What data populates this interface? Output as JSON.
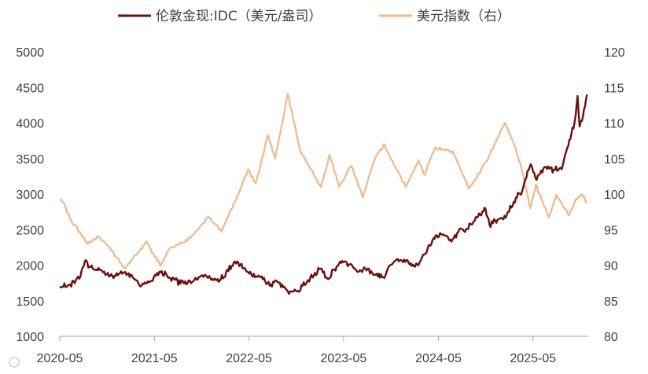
{
  "chart_data": {
    "type": "line",
    "title": "",
    "xlabel": "",
    "ylabel": "",
    "x_tick_labels": [
      "2020-05",
      "2021-05",
      "2022-05",
      "2023-05",
      "2024-05",
      "2025-05"
    ],
    "x_range": [
      "2020-05-01",
      "2025-11-30"
    ],
    "y_left": {
      "ylim": [
        1000,
        5000
      ],
      "ticks": [
        1000,
        1500,
        2000,
        2500,
        3000,
        3500,
        4000,
        4500,
        5000
      ]
    },
    "y_right": {
      "ylim": [
        80,
        120
      ],
      "ticks": [
        80,
        85,
        90,
        95,
        100,
        105,
        110,
        115,
        120
      ]
    },
    "grid": false,
    "legend_position": "top",
    "series": [
      {
        "name": "伦敦金现:IDC（美元/盎司）",
        "axis": "left",
        "color": "#6b0f0f",
        "x": [
          "2020-05-01",
          "2020-06-10",
          "2020-07-15",
          "2020-08-06",
          "2020-09-10",
          "2020-10-15",
          "2020-11-20",
          "2021-01-05",
          "2021-02-15",
          "2021-03-08",
          "2021-04-15",
          "2021-05-25",
          "2021-07-15",
          "2021-08-10",
          "2021-09-15",
          "2021-11-15",
          "2021-12-15",
          "2022-01-25",
          "2022-03-08",
          "2022-04-15",
          "2022-05-15",
          "2022-06-15",
          "2022-07-20",
          "2022-08-15",
          "2022-09-28",
          "2022-11-03",
          "2022-12-15",
          "2023-02-01",
          "2023-02-28",
          "2023-04-13",
          "2023-05-04",
          "2023-06-29",
          "2023-07-20",
          "2023-08-20",
          "2023-10-05",
          "2023-10-27",
          "2023-12-04",
          "2024-01-15",
          "2024-02-14",
          "2024-03-08",
          "2024-04-12",
          "2024-05-20",
          "2024-06-20",
          "2024-07-17",
          "2024-08-20",
          "2024-09-26",
          "2024-10-30",
          "2024-11-14",
          "2024-12-15",
          "2025-01-20",
          "2025-02-24",
          "2025-03-20",
          "2025-04-22",
          "2025-05-15",
          "2025-06-15",
          "2025-07-20",
          "2025-08-20",
          "2025-09-10",
          "2025-10-08",
          "2025-10-20",
          "2025-10-28",
          "2025-11-10",
          "2025-11-25"
        ],
        "values": [
          1700,
          1730,
          1810,
          2060,
          1940,
          1900,
          1850,
          1900,
          1800,
          1700,
          1770,
          1900,
          1810,
          1740,
          1780,
          1860,
          1790,
          1830,
          2050,
          1960,
          1840,
          1830,
          1710,
          1780,
          1630,
          1630,
          1790,
          1950,
          1810,
          2020,
          2050,
          1910,
          1970,
          1890,
          1820,
          2000,
          2070,
          2030,
          2000,
          2150,
          2380,
          2430,
          2330,
          2470,
          2510,
          2670,
          2790,
          2570,
          2640,
          2710,
          2950,
          3040,
          3420,
          3200,
          3380,
          3340,
          3350,
          3650,
          4000,
          4380,
          3950,
          4100,
          4400
        ]
      },
      {
        "name": "美元指数（右）",
        "axis": "right",
        "color": "#f0b88a",
        "x": [
          "2020-05-01",
          "2020-05-20",
          "2020-06-10",
          "2020-07-10",
          "2020-08-15",
          "2020-09-25",
          "2020-11-10",
          "2021-01-06",
          "2021-03-31",
          "2021-05-25",
          "2021-06-30",
          "2021-08-20",
          "2021-09-30",
          "2021-11-24",
          "2022-01-14",
          "2022-03-08",
          "2022-04-28",
          "2022-05-27",
          "2022-07-14",
          "2022-08-10",
          "2022-09-28",
          "2022-11-15",
          "2023-01-18",
          "2023-02-02",
          "2023-03-08",
          "2023-04-14",
          "2023-05-31",
          "2023-07-14",
          "2023-08-25",
          "2023-10-03",
          "2023-12-28",
          "2024-02-14",
          "2024-03-08",
          "2024-04-16",
          "2024-06-26",
          "2024-08-27",
          "2024-10-31",
          "2025-01-13",
          "2025-02-14",
          "2025-03-18",
          "2025-04-21",
          "2025-05-12",
          "2025-07-01",
          "2025-07-30",
          "2025-09-17",
          "2025-10-15",
          "2025-11-05",
          "2025-11-25"
        ],
        "values": [
          99.2,
          98.5,
          96.5,
          95,
          93,
          94,
          92.5,
          89.5,
          93.3,
          89.9,
          92.4,
          93.2,
          94.3,
          96.8,
          94.7,
          99,
          103.5,
          101.5,
          108.3,
          105,
          114.1,
          106,
          102,
          101,
          105.5,
          101,
          104,
          99.5,
          104.5,
          107,
          101,
          104.8,
          102.7,
          106.4,
          106,
          100.8,
          104.5,
          110,
          107.3,
          103.5,
          98,
          101.3,
          96.7,
          99.9,
          97,
          99.4,
          100,
          98.7
        ]
      }
    ]
  }
}
